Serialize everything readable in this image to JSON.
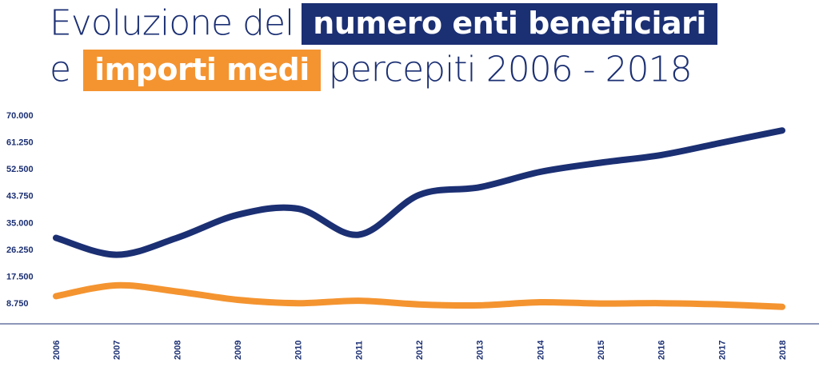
{
  "title": {
    "line1_pre": "Evoluzione del",
    "line1_highlight": "numero enti  beneficiari",
    "line2_pre": "e",
    "line2_highlight": "importi medi",
    "line2_post": "percepiti 2006 - 2018"
  },
  "colors": {
    "navy": "#1b2f73",
    "orange": "#f49430"
  },
  "chart_data": {
    "type": "line",
    "x": [
      "2006",
      "2007",
      "2008",
      "2009",
      "2010",
      "2011",
      "2012",
      "2013",
      "2014",
      "2015",
      "2016",
      "2017",
      "2018"
    ],
    "series": [
      {
        "color": "#1b2f73",
        "values": [
          30000,
          24500,
          30000,
          37500,
          39500,
          31000,
          44000,
          46500,
          51500,
          54500,
          57000,
          61000,
          65000
        ]
      },
      {
        "color": "#f49430",
        "values": [
          11000,
          14500,
          12500,
          9800,
          8700,
          9500,
          8300,
          8000,
          9000,
          8600,
          8700,
          8300,
          7500
        ]
      }
    ],
    "yticks": [
      "70.000",
      "61.250",
      "52.500",
      "43.750",
      "35.000",
      "26.250",
      "17.500",
      "8.750"
    ],
    "ytick_values": [
      70000,
      61250,
      52500,
      43750,
      35000,
      26250,
      17500,
      8750
    ],
    "ylim": [
      0,
      70000
    ],
    "grid": false,
    "legend": "none"
  }
}
